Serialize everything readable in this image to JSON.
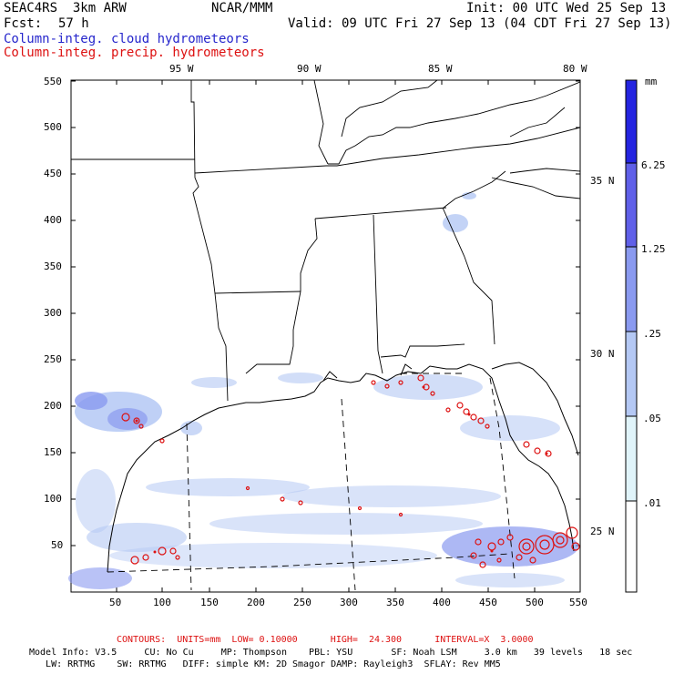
{
  "header": {
    "model": "SEAC4RS  3km ARW",
    "center": "NCAR/MMM",
    "init": "Init: 00 UTC Wed 25 Sep 13",
    "fcst_label": "Fcst:",
    "fcst_value": "57 h",
    "valid": "Valid: 09 UTC Fri 27 Sep 13 (04 CDT Fri 27 Sep 13)",
    "field1": "Column-integ. cloud hydrometeors",
    "field2": "Column-integ. precip. hydrometeors"
  },
  "colors": {
    "field1": "#2626cc",
    "field2": "#dd1111",
    "map_lines": "#000000",
    "colorbar": [
      "#ffffff",
      "#e0f4fa",
      "#b4c8f4",
      "#8a9af0",
      "#6060e8",
      "#2424e0"
    ]
  },
  "map": {
    "top_labels": [
      "95 W",
      "90 W",
      "85 W",
      "80 W"
    ],
    "right_labels": [
      "35 N",
      "30 N",
      "25 N"
    ],
    "y_ticks": [
      "550",
      "500",
      "450",
      "400",
      "350",
      "300",
      "250",
      "200",
      "150",
      "100",
      "50"
    ],
    "x_ticks": [
      "50",
      "100",
      "150",
      "200",
      "250",
      "300",
      "350",
      "400",
      "450",
      "500",
      "550"
    ]
  },
  "colorbar": {
    "unit": "mm",
    "labels": [
      "6.25",
      "1.25",
      ".25",
      ".05",
      ".01"
    ]
  },
  "footer": {
    "contours": "CONTOURS:  UNITS=mm  LOW= 0.10000      HIGH=  24.300      INTERVAL=X  3.0000",
    "model_info": "Model Info: V3.5     CU: No Cu     MP: Thompson    PBL: YSU       SF: Noah LSM     3.0 km   39 levels   18 sec",
    "model_info2": "   LW: RRTMG    SW: RRTMG   DIFF: simple KM: 2D Smagor DAMP: Rayleigh3  SFLAY: Rev MM5"
  }
}
